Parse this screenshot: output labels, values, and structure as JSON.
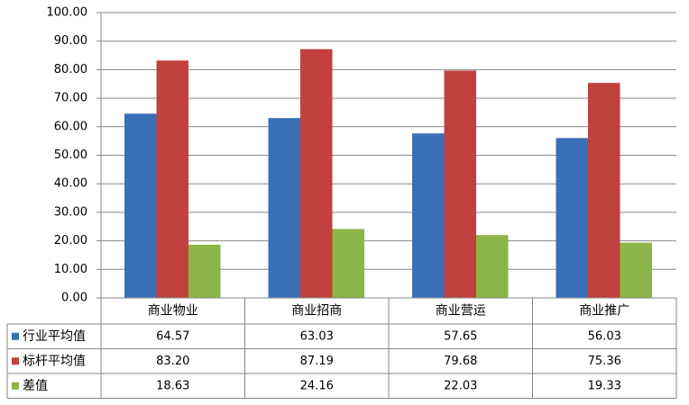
{
  "chart_data": {
    "type": "bar",
    "categories": [
      "商业物业",
      "商业招商",
      "商业营运",
      "商业推广"
    ],
    "series": [
      {
        "name": "行业平均值",
        "color": "#3b6fb6",
        "values": [
          64.57,
          63.03,
          57.65,
          56.03
        ],
        "value_labels": [
          "64.57",
          "63.03",
          "57.65",
          "56.03"
        ]
      },
      {
        "name": "标杆平均值",
        "color": "#c0413d",
        "values": [
          83.2,
          87.19,
          79.68,
          75.36
        ],
        "value_labels": [
          "83.20",
          "87.19",
          "79.68",
          "75.36"
        ]
      },
      {
        "name": "差值",
        "color": "#8db448",
        "values": [
          18.63,
          24.16,
          22.03,
          19.33
        ],
        "value_labels": [
          "18.63",
          "24.16",
          "22.03",
          "19.33"
        ]
      }
    ],
    "ylim": [
      0,
      100
    ],
    "yticks": [
      {
        "value": 0,
        "label": "0.00"
      },
      {
        "value": 10,
        "label": "10.00"
      },
      {
        "value": 20,
        "label": "20.00"
      },
      {
        "value": 30,
        "label": "30.00"
      },
      {
        "value": 40,
        "label": "40.00"
      },
      {
        "value": 50,
        "label": "50.00"
      },
      {
        "value": 60,
        "label": "60.00"
      },
      {
        "value": 70,
        "label": "70.00"
      },
      {
        "value": 80,
        "label": "80.00"
      },
      {
        "value": 90,
        "label": "90.00"
      },
      {
        "value": 100,
        "label": "100.00"
      }
    ],
    "grid": true
  }
}
